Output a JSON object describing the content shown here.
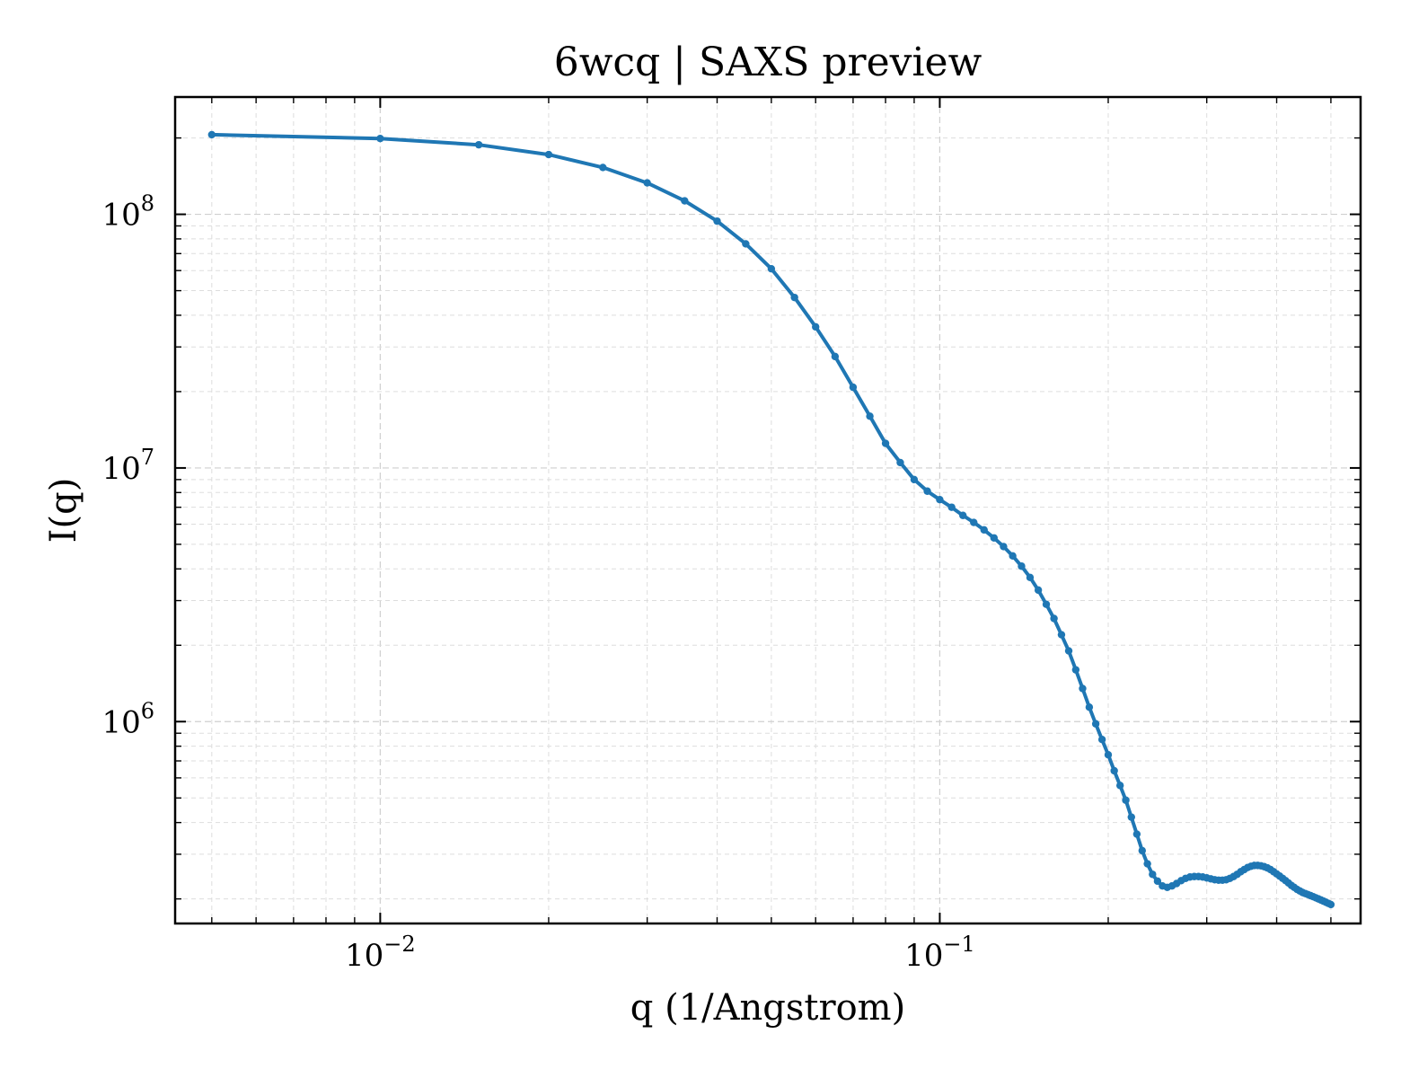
{
  "chart_data": {
    "type": "line",
    "title": "6wcq | SAXS preview",
    "xlabel": "q (1/Angstrom)",
    "ylabel": "I(q)",
    "xscale": "log",
    "yscale": "log",
    "xlim": [
      0.0043,
      0.565
    ],
    "ylim": [
      160000,
      290000000
    ],
    "grid": true,
    "legend": "none",
    "line_color": "#1f77b4",
    "x_ticks": [
      {
        "base": "10",
        "exp": "−2",
        "value": 0.01
      },
      {
        "base": "10",
        "exp": "−1",
        "value": 0.1
      }
    ],
    "y_ticks": [
      {
        "base": "10",
        "exp": "6",
        "value": 1000000
      },
      {
        "base": "10",
        "exp": "7",
        "value": 10000000
      },
      {
        "base": "10",
        "exp": "8",
        "value": 100000000
      }
    ],
    "series": [
      {
        "x": [
          0.005,
          0.01,
          0.015,
          0.02,
          0.025,
          0.03,
          0.035,
          0.04,
          0.045,
          0.05,
          0.055,
          0.06,
          0.065,
          0.07,
          0.075,
          0.08,
          0.085,
          0.09,
          0.095,
          0.1,
          0.105,
          0.11,
          0.115,
          0.12,
          0.125,
          0.13,
          0.135,
          0.14,
          0.145,
          0.15,
          0.155,
          0.16,
          0.165,
          0.17,
          0.175,
          0.18,
          0.185,
          0.19,
          0.195,
          0.2,
          0.205,
          0.21,
          0.215,
          0.22,
          0.225,
          0.23,
          0.235,
          0.24,
          0.245,
          0.25,
          0.255,
          0.26,
          0.265,
          0.27,
          0.275,
          0.28,
          0.285,
          0.29,
          0.295,
          0.3,
          0.305,
          0.31,
          0.315,
          0.32,
          0.325,
          0.33,
          0.335,
          0.34,
          0.345,
          0.35,
          0.355,
          0.36,
          0.365,
          0.37,
          0.375,
          0.38,
          0.385,
          0.39,
          0.395,
          0.4,
          0.405,
          0.41,
          0.415,
          0.42,
          0.425,
          0.43,
          0.435,
          0.44,
          0.445,
          0.45,
          0.455,
          0.46,
          0.465,
          0.47,
          0.475,
          0.48,
          0.485,
          0.49,
          0.495,
          0.5
        ],
        "y": [
          206000000,
          199000000,
          188000000,
          172000000,
          153000000,
          133000000,
          113000000,
          94000000,
          76500000,
          61000000,
          47000000,
          36000000,
          27500000,
          20800000,
          16000000,
          12500000,
          10500000,
          9000000,
          8100000,
          7500000,
          7000000,
          6500000,
          6100000,
          5700000,
          5300000,
          4900000,
          4500000,
          4100000,
          3700000,
          3300000,
          2900000,
          2550000,
          2200000,
          1900000,
          1600000,
          1350000,
          1140000,
          980000,
          850000,
          740000,
          640000,
          560000,
          490000,
          420000,
          360000,
          310000,
          275000,
          250000,
          235000,
          225000,
          222000,
          225000,
          230000,
          236000,
          241000,
          244000,
          245000,
          245000,
          244000,
          242000,
          240000,
          238000,
          237000,
          237000,
          238000,
          241000,
          245000,
          250000,
          256000,
          261000,
          266000,
          269000,
          271000,
          271000,
          270000,
          268000,
          265000,
          261000,
          256000,
          251000,
          246000,
          241000,
          236000,
          231000,
          226000,
          222000,
          218000,
          215000,
          212000,
          210000,
          208000,
          206000,
          204000,
          202000,
          200000,
          198000,
          196000,
          194000,
          192000,
          190000
        ]
      }
    ]
  }
}
